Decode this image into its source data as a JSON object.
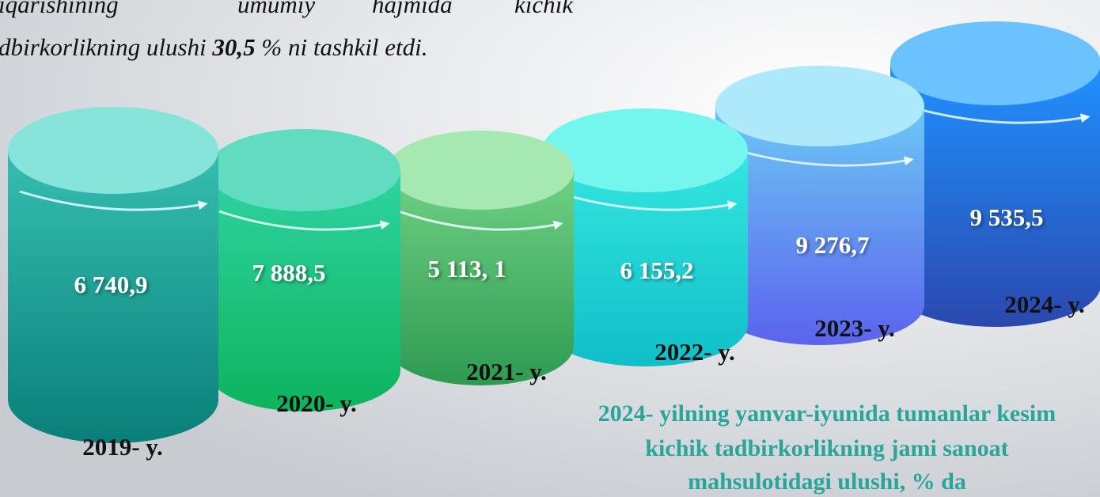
{
  "intro": {
    "line1": [
      "iqarishining",
      "umumiy",
      "hajmida",
      "kichik"
    ],
    "line2": {
      "before": "dbirkorlikning ulushi ",
      "bold": "30,5",
      "after": " % ni tashkil etdi."
    }
  },
  "cylinders": [
    {
      "value": "6 740,9",
      "year": "2019- y."
    },
    {
      "value": "7 888,5",
      "year": "2020- y."
    },
    {
      "value": "5 113, 1",
      "year": "2021- y."
    },
    {
      "value": "6 155,2",
      "year": "2022- y."
    },
    {
      "value": "9 276,7",
      "year": "2023- y."
    },
    {
      "value": "9 535,5",
      "year": "2024- y."
    }
  ],
  "caption": {
    "lines": [
      "2024- yilning yanvar-iyunida tumanlar kesim",
      "kichik tadbirkorlikning jami sanoat",
      "mahsulotidagi ulushi, % da"
    ]
  }
}
